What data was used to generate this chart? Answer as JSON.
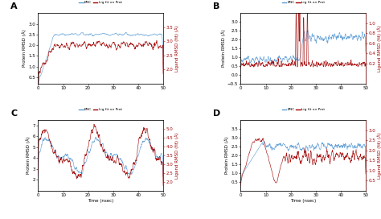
{
  "legend_labels": [
    "BNC",
    "Lig fit on Prot"
  ],
  "subplot_labels": [
    "A",
    "B",
    "C",
    "D"
  ],
  "x_label": "Time (nsec)",
  "y_left_label": "Protein RMSD (Å)",
  "y_right_label_A": "Ligand RMSD (fit) (Å)",
  "y_right_label_B": "Ligand RMSD (fit) (Å)",
  "y_right_label_C": "Ligand RMSD (fit) (Å)",
  "y_right_label_D": "Ligand RMSD (fit) (Å)",
  "color_blue": "#5b9bd5",
  "color_red": "#a00000",
  "n_points": 600,
  "panel_configs": {
    "A": {
      "ylim_l": [
        0.2,
        3.5
      ],
      "ylim_r": [
        1.5,
        4.0
      ],
      "yticks_l": [
        0.5,
        1.0,
        1.5,
        2.0,
        2.5,
        3.0
      ],
      "yticks_r": [
        2.0,
        2.5,
        3.0,
        3.5
      ],
      "xlabel": false
    },
    "B": {
      "ylim_l": [
        -0.5,
        3.5
      ],
      "ylim_r": [
        -0.2,
        1.2
      ],
      "yticks_l": [
        -0.5,
        0.0,
        0.5,
        1.0,
        1.5,
        2.0,
        2.5,
        3.0
      ],
      "yticks_r": [
        0.2,
        0.4,
        0.6,
        0.8,
        1.0
      ],
      "xlabel": false
    },
    "C": {
      "ylim_l": [
        1.0,
        7.5
      ],
      "ylim_r": [
        1.5,
        5.5
      ],
      "yticks_l": [
        2.0,
        3.0,
        4.0,
        5.0,
        6.0,
        7.0
      ],
      "yticks_r": [
        2.0,
        2.5,
        3.0,
        3.5,
        4.0,
        4.5,
        5.0
      ],
      "xlabel": true
    },
    "D": {
      "ylim_l": [
        0.0,
        4.0
      ],
      "ylim_r": [
        0.0,
        3.5
      ],
      "yticks_l": [
        0.5,
        1.0,
        1.5,
        2.0,
        2.5,
        3.0,
        3.5
      ],
      "yticks_r": [
        0.5,
        1.0,
        1.5,
        2.0,
        2.5,
        3.0
      ],
      "xlabel": true
    }
  },
  "seed": 42
}
